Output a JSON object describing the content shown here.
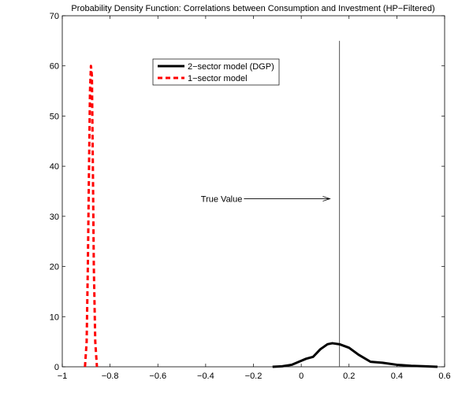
{
  "chart_data": {
    "type": "line",
    "title": "Probability Density Function: Correlations between Consumption and Investment (HP−Filtered)",
    "xlabel": "",
    "ylabel": "",
    "xlim": [
      -1,
      0.6
    ],
    "ylim": [
      0,
      70
    ],
    "xticks": [
      -1,
      -0.8,
      -0.6,
      -0.4,
      -0.2,
      0,
      0.2,
      0.4,
      0.6
    ],
    "xtick_labels": [
      "−1",
      "−0.8",
      "−0.6",
      "−0.4",
      "−0.2",
      "0",
      "0.2",
      "0.4",
      "0.6"
    ],
    "yticks": [
      0,
      10,
      20,
      30,
      40,
      50,
      60,
      70
    ],
    "ytick_labels": [
      "0",
      "10",
      "20",
      "30",
      "40",
      "50",
      "60",
      "70"
    ],
    "grid": false,
    "legend_position": "top-center",
    "series": [
      {
        "name": "2−sector model (DGP)",
        "color": "#000000",
        "style": "solid",
        "x": [
          -0.12,
          -0.08,
          -0.04,
          0.0,
          0.02,
          0.05,
          0.08,
          0.11,
          0.13,
          0.16,
          0.2,
          0.24,
          0.29,
          0.34,
          0.4,
          0.46,
          0.52,
          0.57
        ],
        "y": [
          0.0,
          0.1,
          0.4,
          1.2,
          1.6,
          2.0,
          3.5,
          4.5,
          4.7,
          4.5,
          3.8,
          2.4,
          1.0,
          0.8,
          0.4,
          0.2,
          0.1,
          0.0
        ]
      },
      {
        "name": "1−sector model",
        "color": "#ff0000",
        "style": "dashed",
        "x": [
          -0.905,
          -0.898,
          -0.893,
          -0.888,
          -0.884,
          -0.88,
          -0.876,
          -0.872,
          -0.868,
          -0.862,
          -0.855
        ],
        "y": [
          0,
          5,
          20,
          40,
          55,
          60,
          58,
          40,
          20,
          5,
          0
        ]
      }
    ],
    "vline": {
      "x": 0.16,
      "y_top": 65,
      "color": "#555555"
    },
    "annotation": {
      "text": "True Value",
      "arrow_from": [
        -0.24,
        33.5
      ],
      "arrow_to": [
        0.12,
        33.5
      ]
    }
  }
}
